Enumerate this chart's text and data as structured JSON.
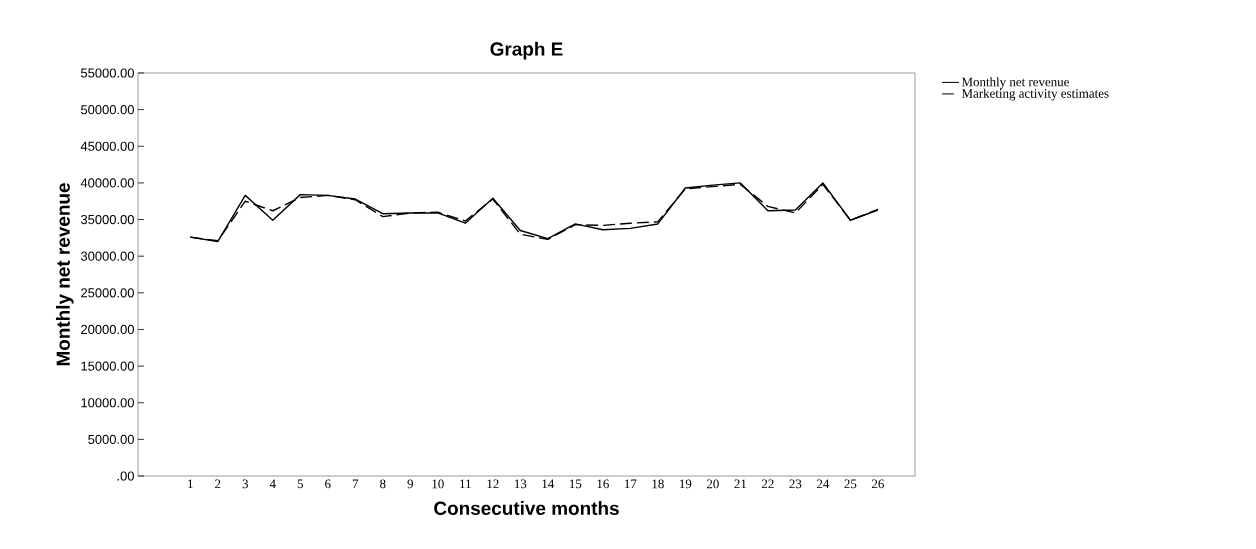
{
  "chart_data": {
    "type": "line",
    "title": "Graph E",
    "xlabel": "Consecutive months",
    "ylabel": "Monthly net revenue",
    "categories": [
      "1",
      "2",
      "3",
      "4",
      "5",
      "6",
      "7",
      "8",
      "9",
      "10",
      "11",
      "12",
      "13",
      "14",
      "15",
      "16",
      "17",
      "18",
      "19",
      "20",
      "21",
      "22",
      "23",
      "24",
      "25",
      "26"
    ],
    "series": [
      {
        "name": "Monthly net revenue",
        "color": "#000000",
        "line_style": "solid",
        "values": [
          32600,
          32000,
          38300,
          34900,
          38400,
          38300,
          37800,
          35800,
          35900,
          35900,
          34500,
          37900,
          33500,
          32400,
          34400,
          33600,
          33800,
          34400,
          39300,
          39700,
          40000,
          36200,
          36300,
          40000,
          34900,
          36300
        ]
      },
      {
        "name": "Marketing activity estimates",
        "color": "#000000",
        "line_style": "dashed",
        "values": [
          32600,
          32100,
          37500,
          36200,
          38000,
          38300,
          37700,
          35400,
          35900,
          36000,
          34800,
          37800,
          33000,
          32300,
          34300,
          34200,
          34500,
          34700,
          39200,
          39500,
          39800,
          36800,
          35900,
          39800,
          34900,
          36400
        ]
      }
    ],
    "ylim": [
      0,
      55000
    ],
    "yticks": [
      {
        "value": 0,
        "label": ".00"
      },
      {
        "value": 5000,
        "label": "5000.00"
      },
      {
        "value": 10000,
        "label": "10000.00"
      },
      {
        "value": 15000,
        "label": "15000.00"
      },
      {
        "value": 20000,
        "label": "20000.00"
      },
      {
        "value": 25000,
        "label": "25000.00"
      },
      {
        "value": 30000,
        "label": "30000.00"
      },
      {
        "value": 35000,
        "label": "35000.00"
      },
      {
        "value": 40000,
        "label": "40000.00"
      },
      {
        "value": 45000,
        "label": "45000.00"
      },
      {
        "value": 50000,
        "label": "50000.00"
      },
      {
        "value": 55000,
        "label": "55000.00"
      }
    ],
    "legend": "top right",
    "grid": false,
    "marker": "none"
  }
}
